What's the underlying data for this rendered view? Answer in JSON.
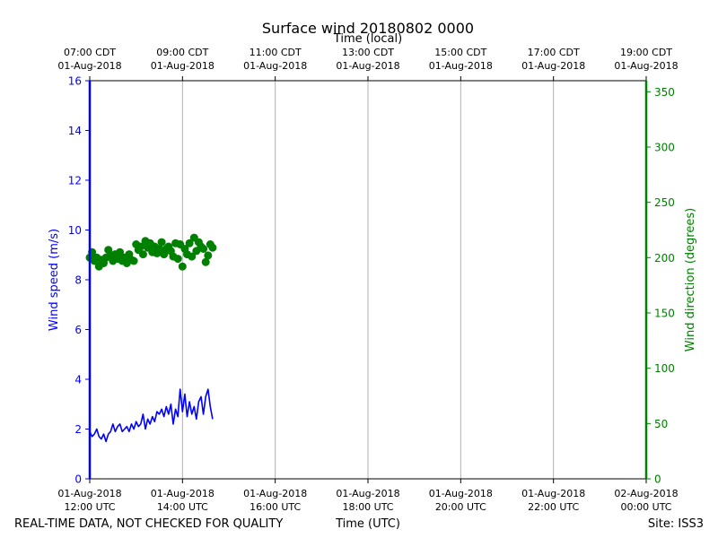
{
  "chart_data": {
    "type": "line",
    "title": "Surface wind 20180802 0000",
    "top_axis_title": "Time (local)",
    "bottom_axis_title": "Time (UTC)",
    "left_axis_title": "Wind speed (m/s)",
    "right_axis_title": "Wind direction (degrees)",
    "x_range_hours_utc": [
      12,
      24
    ],
    "left_ylim": [
      0,
      16
    ],
    "right_ylim": [
      0,
      360
    ],
    "left_yticks": [
      0,
      2,
      4,
      6,
      8,
      10,
      12,
      14,
      16
    ],
    "right_yticks": [
      0,
      50,
      100,
      150,
      200,
      250,
      300,
      350
    ],
    "grid": "vertical",
    "bottom_ticks": [
      {
        "hour": 12,
        "line1": "01-Aug-2018",
        "line2": "12:00 UTC"
      },
      {
        "hour": 14,
        "line1": "01-Aug-2018",
        "line2": "14:00 UTC"
      },
      {
        "hour": 16,
        "line1": "01-Aug-2018",
        "line2": "16:00 UTC"
      },
      {
        "hour": 18,
        "line1": "01-Aug-2018",
        "line2": "18:00 UTC"
      },
      {
        "hour": 20,
        "line1": "01-Aug-2018",
        "line2": "20:00 UTC"
      },
      {
        "hour": 22,
        "line1": "01-Aug-2018",
        "line2": "22:00 UTC"
      },
      {
        "hour": 24,
        "line1": "02-Aug-2018",
        "line2": "00:00 UTC"
      }
    ],
    "top_ticks": [
      {
        "hour": 12,
        "line1": "07:00 CDT",
        "line2": "01-Aug-2018"
      },
      {
        "hour": 14,
        "line1": "09:00 CDT",
        "line2": "01-Aug-2018"
      },
      {
        "hour": 16,
        "line1": "11:00 CDT",
        "line2": "01-Aug-2018"
      },
      {
        "hour": 18,
        "line1": "13:00 CDT",
        "line2": "01-Aug-2018"
      },
      {
        "hour": 20,
        "line1": "15:00 CDT",
        "line2": "01-Aug-2018"
      },
      {
        "hour": 22,
        "line1": "17:00 CDT",
        "line2": "01-Aug-2018"
      },
      {
        "hour": 24,
        "line1": "19:00 CDT",
        "line2": "01-Aug-2018"
      }
    ],
    "series": [
      {
        "name": "Wind speed",
        "axis": "left",
        "style": "line",
        "color": "#0000ff",
        "x": [
          12.0,
          12.05,
          12.1,
          12.15,
          12.2,
          12.25,
          12.3,
          12.35,
          12.4,
          12.45,
          12.5,
          12.55,
          12.6,
          12.65,
          12.7,
          12.75,
          12.8,
          12.85,
          12.9,
          12.95,
          13.0,
          13.05,
          13.1,
          13.15,
          13.2,
          13.25,
          13.3,
          13.35,
          13.4,
          13.45,
          13.5,
          13.55,
          13.6,
          13.65,
          13.7,
          13.75,
          13.8,
          13.85,
          13.9,
          13.95,
          14.0,
          14.05,
          14.1,
          14.15,
          14.2,
          14.25,
          14.3,
          14.35,
          14.4,
          14.45,
          14.5,
          14.55,
          14.6,
          14.65
        ],
        "values": [
          1.9,
          1.7,
          1.8,
          2.0,
          1.7,
          1.6,
          1.8,
          1.5,
          1.8,
          1.9,
          2.2,
          1.9,
          2.1,
          2.2,
          1.9,
          2.0,
          2.1,
          1.9,
          2.2,
          2.0,
          2.3,
          2.1,
          2.2,
          2.6,
          2.0,
          2.4,
          2.2,
          2.5,
          2.3,
          2.7,
          2.6,
          2.8,
          2.5,
          2.9,
          2.6,
          3.0,
          2.2,
          2.8,
          2.5,
          3.6,
          2.7,
          3.4,
          2.5,
          3.1,
          2.6,
          2.9,
          2.4,
          3.1,
          3.3,
          2.6,
          3.3,
          3.6,
          2.9,
          2.4
        ]
      },
      {
        "name": "Wind direction",
        "axis": "right",
        "style": "markers",
        "color": "#008000",
        "x": [
          12.0,
          12.05,
          12.1,
          12.15,
          12.2,
          12.25,
          12.3,
          12.35,
          12.4,
          12.45,
          12.5,
          12.55,
          12.6,
          12.65,
          12.7,
          12.75,
          12.8,
          12.85,
          12.9,
          12.95,
          13.0,
          13.05,
          13.1,
          13.15,
          13.2,
          13.25,
          13.3,
          13.35,
          13.4,
          13.45,
          13.5,
          13.55,
          13.6,
          13.65,
          13.7,
          13.75,
          13.8,
          13.85,
          13.9,
          13.95,
          14.0,
          14.05,
          14.1,
          14.15,
          14.2,
          14.25,
          14.3,
          14.35,
          14.4,
          14.45,
          14.5,
          14.55,
          14.6,
          14.65
        ],
        "values": [
          200,
          205,
          197,
          200,
          192,
          198,
          195,
          200,
          207,
          202,
          197,
          203,
          199,
          205,
          197,
          200,
          195,
          203,
          198,
          197,
          212,
          207,
          210,
          203,
          215,
          209,
          213,
          205,
          210,
          204,
          208,
          214,
          203,
          208,
          210,
          206,
          201,
          213,
          199,
          212,
          192,
          208,
          203,
          213,
          201,
          218,
          206,
          214,
          210,
          208,
          196,
          202,
          212,
          209
        ]
      }
    ]
  },
  "footer": {
    "left": "REAL-TIME DATA, NOT CHECKED FOR QUALITY",
    "site": "Site: ISS3"
  },
  "colors": {
    "speed": "#0000ff",
    "direction": "#008000",
    "grid": "#b0b0b0",
    "axis": "#000000"
  }
}
